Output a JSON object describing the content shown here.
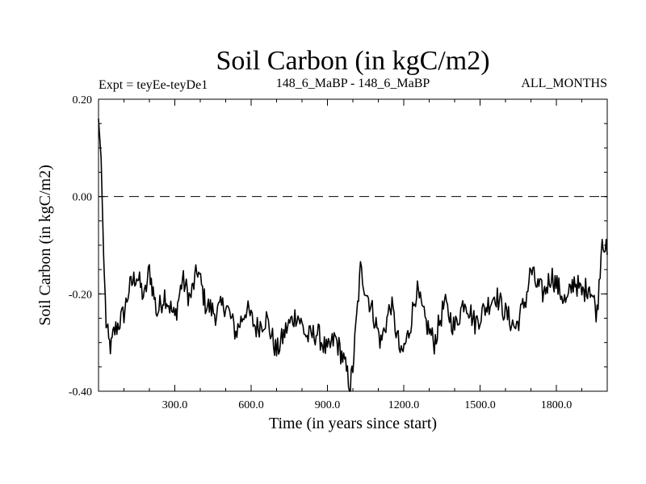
{
  "chart_data": {
    "type": "line",
    "title": "Soil Carbon (in kgC/m2)",
    "subtitle_left": "Expt = teyEe-teyDe1",
    "subtitle_center": "148_6_MaBP - 148_6_MaBP",
    "subtitle_right": "ALL_MONTHS",
    "xlabel": "Time (in years since start)",
    "ylabel": "Soil Carbon (in kgC/m2)",
    "xlim": [
      0,
      2000
    ],
    "ylim": [
      -0.4,
      0.2
    ],
    "xticks": [
      {
        "value": 300,
        "label": "300.0"
      },
      {
        "value": 600,
        "label": "600.0"
      },
      {
        "value": 900,
        "label": "900.0"
      },
      {
        "value": 1200,
        "label": "1200.0"
      },
      {
        "value": 1500,
        "label": "1500.0"
      },
      {
        "value": 1800,
        "label": "1800.0"
      }
    ],
    "yticks": [
      {
        "value": 0.2,
        "label": "0.20"
      },
      {
        "value": 0.0,
        "label": "0.00"
      },
      {
        "value": -0.2,
        "label": "-0.20"
      },
      {
        "value": -0.4,
        "label": "-0.40"
      }
    ],
    "reference_line": {
      "value": 0.0,
      "style": "dashed"
    },
    "series": [
      {
        "name": "Soil Carbon",
        "x": [
          0,
          10,
          20,
          30,
          40,
          50,
          60,
          80,
          100,
          120,
          150,
          180,
          200,
          230,
          260,
          300,
          330,
          360,
          390,
          420,
          460,
          500,
          540,
          580,
          620,
          660,
          700,
          740,
          780,
          820,
          860,
          900,
          930,
          960,
          990,
          1000,
          1030,
          1050,
          1080,
          1110,
          1150,
          1190,
          1220,
          1250,
          1280,
          1320,
          1360,
          1400,
          1440,
          1480,
          1520,
          1560,
          1600,
          1640,
          1680,
          1700,
          1720,
          1750,
          1780,
          1810,
          1840,
          1870,
          1900,
          1930,
          1960,
          1980,
          2000
        ],
        "y": [
          0.16,
          0.08,
          -0.12,
          -0.26,
          -0.3,
          -0.31,
          -0.28,
          -0.26,
          -0.24,
          -0.19,
          -0.16,
          -0.21,
          -0.15,
          -0.24,
          -0.2,
          -0.25,
          -0.17,
          -0.21,
          -0.15,
          -0.22,
          -0.24,
          -0.22,
          -0.28,
          -0.23,
          -0.27,
          -0.25,
          -0.32,
          -0.27,
          -0.24,
          -0.29,
          -0.28,
          -0.32,
          -0.29,
          -0.33,
          -0.39,
          -0.35,
          -0.15,
          -0.19,
          -0.24,
          -0.3,
          -0.22,
          -0.33,
          -0.28,
          -0.19,
          -0.25,
          -0.3,
          -0.22,
          -0.27,
          -0.21,
          -0.26,
          -0.23,
          -0.2,
          -0.24,
          -0.27,
          -0.21,
          -0.15,
          -0.18,
          -0.2,
          -0.16,
          -0.19,
          -0.22,
          -0.17,
          -0.2,
          -0.18,
          -0.24,
          -0.08,
          -0.12
        ]
      }
    ],
    "grid": false
  }
}
